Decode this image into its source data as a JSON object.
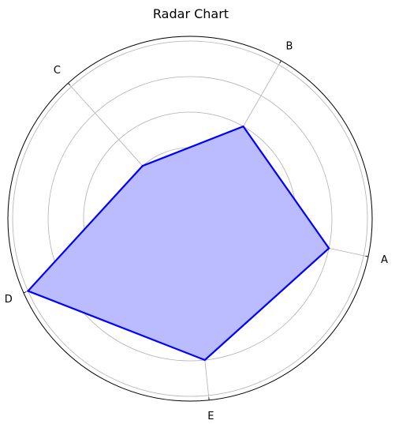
{
  "chart_data": {
    "type": "radar",
    "title": "Radar Chart",
    "categories": [
      "A",
      "B",
      "C",
      "D",
      "E"
    ],
    "series": [
      {
        "values": [
          4,
          3,
          2,
          5,
          4
        ]
      }
    ],
    "rlim": [
      0,
      5
    ],
    "rgrid": [
      1,
      2,
      3,
      4,
      5
    ],
    "grid": true,
    "radial_tick_labels_visible": false,
    "colors": {
      "line": "#0000ff",
      "fill": "#bbbbff",
      "grid": "#b0b0b0",
      "frame": "#000000"
    }
  }
}
